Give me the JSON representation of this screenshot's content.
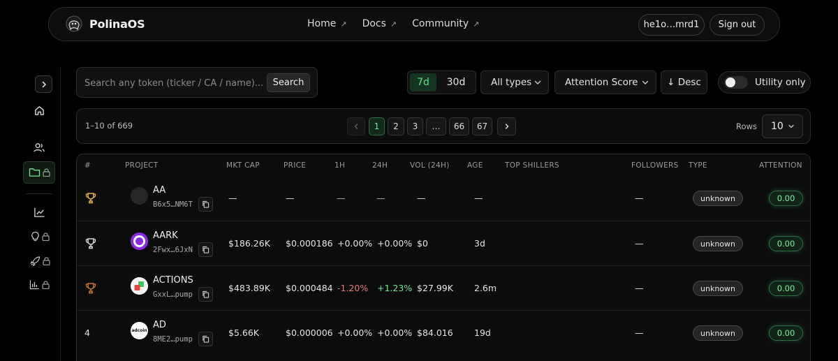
{
  "brand": {
    "name": "PolinaOS"
  },
  "nav": {
    "links": [
      {
        "label": "Home",
        "arrow": "↗"
      },
      {
        "label": "Docs",
        "arrow": "↗"
      },
      {
        "label": "Community",
        "arrow": "↗"
      }
    ],
    "wallet": "he1o…mrd1",
    "sign_out": "Sign out"
  },
  "sidebar": {
    "toggle_icon": "chevron-right-icon",
    "items": [
      {
        "icon": "home-icon",
        "locked": false,
        "active": false
      },
      {
        "icon": "users-icon",
        "locked": false,
        "active": false
      },
      {
        "icon": "folder-icon",
        "locked": true,
        "active": true
      },
      {
        "icon": "chart-line-icon",
        "locked": false,
        "active": false
      },
      {
        "icon": "lightbulb-icon",
        "locked": true,
        "active": false
      },
      {
        "icon": "rocket-icon",
        "locked": true,
        "active": false
      },
      {
        "icon": "bar-chart-icon",
        "locked": true,
        "active": false
      }
    ]
  },
  "search": {
    "placeholder": "Search any token (ticker / CA / name)...",
    "button": "Search"
  },
  "filters": {
    "periods": [
      "7d",
      "30d"
    ],
    "active_period": "7d",
    "type_select": "All types",
    "metric_select": "Attention Score",
    "sort": "↓ Desc",
    "utility_label": "Utility only",
    "utility_on": false
  },
  "pagination": {
    "range": "1–10 of 669",
    "pages": [
      "1",
      "2",
      "3",
      "…",
      "66",
      "67"
    ],
    "current": "1",
    "rows_label": "Rows",
    "rows_value": "10"
  },
  "table": {
    "headers": [
      "#",
      "PROJECT",
      "MKT CAP",
      "PRICE",
      "1H",
      "24H",
      "VOL (24H)",
      "AGE",
      "TOP SHILLERS",
      "FOLLOWERS",
      "TYPE",
      "ATTENTION"
    ],
    "rows": [
      {
        "rank": "",
        "trophy": "gold",
        "name": "AA",
        "ca": "B6x5…NM6T",
        "mcap": "—",
        "price": "—",
        "h1": "—",
        "h24": "—",
        "vol": "—",
        "age": "—",
        "followers": "—",
        "type": "unknown",
        "attention": "0.00"
      },
      {
        "rank": "",
        "trophy": "silver",
        "name": "AARK",
        "ca": "2Fwx…6JxN",
        "mcap": "$186.26K",
        "price": "$0.000186",
        "h1": "+0.00%",
        "h24": "+0.00%",
        "vol": "$0",
        "age": "3d",
        "followers": "—",
        "type": "unknown",
        "attention": "0.00"
      },
      {
        "rank": "",
        "trophy": "bronze",
        "name": "ACTIONS",
        "ca": "GxxL…pump",
        "mcap": "$483.89K",
        "price": "$0.000484",
        "h1": "-1.20%",
        "h24": "+1.23%",
        "vol": "$27.99K",
        "age": "2.6m",
        "followers": "—",
        "type": "unknown",
        "attention": "0.00"
      },
      {
        "rank": "4",
        "trophy": "",
        "name": "AD",
        "ca": "8ME2…pump",
        "mcap": "$5.66K",
        "price": "$0.000006",
        "h1": "+0.00%",
        "h24": "+0.00%",
        "vol": "$84.016",
        "age": "19d",
        "followers": "—",
        "type": "unknown",
        "attention": "0.00",
        "logo_text": "adcoin"
      }
    ]
  },
  "colors": {
    "accent_green": "#6fe79a",
    "negative_red": "#e87a7a",
    "gold": "#e8b64a",
    "silver": "#d9d9d9",
    "bronze": "#c8743a"
  }
}
